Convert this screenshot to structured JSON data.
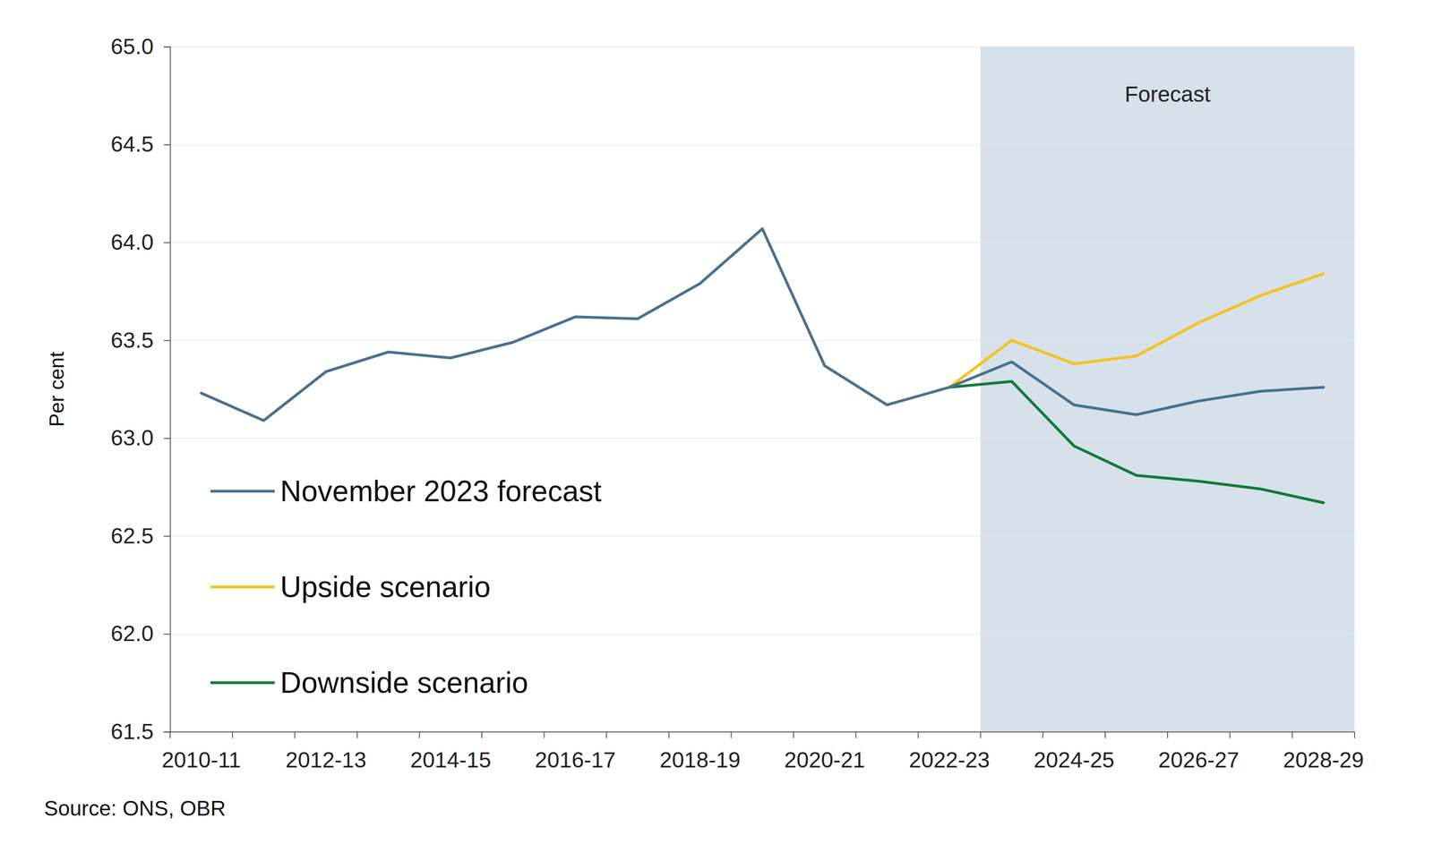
{
  "chart_data": {
    "type": "line",
    "y_label": "Per cent",
    "source": "Source: ONS, OBR",
    "categories": [
      "2010-11",
      null,
      "2012-13",
      null,
      "2014-15",
      null,
      "2016-17",
      null,
      "2018-19",
      null,
      "2020-21",
      null,
      "2022-23",
      null,
      "2024-25",
      null,
      "2026-27",
      null,
      "2028-29"
    ],
    "series": [
      {
        "name": "November 2023 forecast",
        "color": "#4a7090",
        "values": [
          63.23,
          63.09,
          63.34,
          63.44,
          63.41,
          63.49,
          63.62,
          63.61,
          63.79,
          64.07,
          63.37,
          63.17,
          63.26,
          63.39,
          63.17,
          63.12,
          63.19,
          63.24,
          63.26
        ]
      },
      {
        "name": "Upside scenario",
        "color": "#f5c21b",
        "values": [
          null,
          null,
          null,
          null,
          null,
          null,
          null,
          null,
          null,
          null,
          null,
          null,
          63.26,
          63.5,
          63.38,
          63.42,
          63.59,
          63.73,
          63.84
        ]
      },
      {
        "name": "Downside scenario",
        "color": "#137a3c",
        "values": [
          null,
          null,
          null,
          null,
          null,
          null,
          null,
          null,
          null,
          null,
          null,
          null,
          63.26,
          63.29,
          62.96,
          62.81,
          62.78,
          62.74,
          62.67
        ]
      }
    ],
    "annotations": [
      {
        "text": "Forecast",
        "x_start": 13,
        "x_end": 18
      }
    ],
    "ylim": [
      61.5,
      65
    ],
    "yticks": [
      61.5,
      {
        "value": 62,
        "label": "62.0"
      },
      62.5,
      {
        "value": 63,
        "label": "63.0"
      },
      63.5,
      {
        "value": 64,
        "label": "64.0"
      },
      64.5,
      {
        "value": 65,
        "label": "65.0"
      }
    ],
    "grid": true,
    "legend": "lower left"
  }
}
